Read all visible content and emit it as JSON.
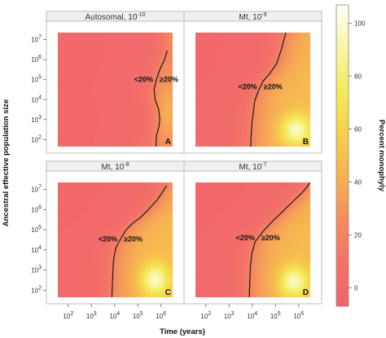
{
  "chart_data": {
    "type": "heatmap",
    "ylabel": "Ancestral effective population size",
    "xlabel": "Time (years)",
    "colorbar": {
      "label": "Percent monophyly",
      "ticks": [
        0,
        20,
        40,
        60,
        80,
        100
      ],
      "range": [
        -7,
        107
      ],
      "colors": [
        "#f1636e",
        "#f37268",
        "#f48c5e",
        "#f6b152",
        "#f7d04c",
        "#f4ea58",
        "#f8f6a6",
        "#fffff8"
      ]
    },
    "x_tick_labels": [
      "10^2",
      "10^3",
      "10^4",
      "10^5",
      "10^6"
    ],
    "y_tick_labels": [
      "10^2",
      "10^3",
      "10^4",
      "10^5",
      "10^6",
      "10^7"
    ],
    "x_range_log10": [
      1.55,
      6.5
    ],
    "y_range_log10": [
      1.65,
      7.35
    ],
    "region_labels": {
      "below": "<20%",
      "above": "≥20%"
    },
    "panels": [
      {
        "title_base": "Autosomal, 10",
        "title_exp": "-10",
        "letter": "A",
        "contour_log10": [
          [
            6.27,
            6.45
          ],
          [
            6.15,
            6.0
          ],
          [
            5.95,
            5.5
          ],
          [
            5.8,
            5.0
          ],
          [
            5.7,
            4.5
          ],
          [
            5.75,
            4.0
          ],
          [
            5.9,
            3.5
          ],
          [
            5.95,
            3.0
          ],
          [
            5.9,
            2.6
          ],
          [
            5.8,
            2.2
          ],
          [
            5.78,
            1.65
          ]
        ],
        "label_y_log10": 5.0,
        "warm": {
          "cx": 6.3,
          "cy": 3.4,
          "sx": 0.45,
          "sy": 1.4,
          "peak": 42,
          "ref_t": 5.8
        }
      },
      {
        "title_base": "Mt, 10",
        "title_exp": "-9",
        "letter": "B",
        "contour_log10": [
          [
            5.45,
            7.35
          ],
          [
            5.25,
            6.5
          ],
          [
            5.05,
            5.8
          ],
          [
            4.75,
            5.3
          ],
          [
            4.45,
            4.9
          ],
          [
            4.25,
            4.4
          ],
          [
            4.1,
            3.9
          ],
          [
            4.05,
            3.4
          ],
          [
            3.98,
            2.8
          ],
          [
            3.95,
            2.2
          ],
          [
            3.93,
            1.65
          ]
        ],
        "label_y_log10": 4.65,
        "warm": {
          "cx": 5.9,
          "cy": 2.5,
          "sx": 0.65,
          "sy": 0.75,
          "peak": 100,
          "ref_t": 4.1
        }
      },
      {
        "title_base": "Mt, 10",
        "title_exp": "-8",
        "letter": "C",
        "contour_log10": [
          [
            6.25,
            7.2
          ],
          [
            5.85,
            6.5
          ],
          [
            5.45,
            6.0
          ],
          [
            5.1,
            5.6
          ],
          [
            4.75,
            5.3
          ],
          [
            4.5,
            5.0
          ],
          [
            4.28,
            4.6
          ],
          [
            4.05,
            4.1
          ],
          [
            3.95,
            3.5
          ],
          [
            3.92,
            2.8
          ],
          [
            3.9,
            2.2
          ],
          [
            3.88,
            1.65
          ]
        ],
        "label_y_log10": 4.55,
        "warm": {
          "cx": 5.75,
          "cy": 2.55,
          "sx": 0.6,
          "sy": 0.8,
          "peak": 100,
          "ref_t": 4.1
        }
      },
      {
        "title_base": "Mt, 10",
        "title_exp": "-7",
        "letter": "D",
        "contour_log10": [
          [
            6.5,
            7.35
          ],
          [
            6.2,
            6.9
          ],
          [
            5.75,
            6.4
          ],
          [
            5.3,
            5.9
          ],
          [
            4.85,
            5.4
          ],
          [
            4.45,
            4.9
          ],
          [
            4.12,
            4.4
          ],
          [
            3.98,
            3.8
          ],
          [
            3.92,
            3.2
          ],
          [
            3.9,
            2.6
          ],
          [
            3.88,
            2.0
          ],
          [
            3.87,
            1.65
          ]
        ],
        "label_y_log10": 4.6,
        "warm": {
          "cx": 5.8,
          "cy": 2.45,
          "sx": 0.6,
          "sy": 0.75,
          "peak": 100,
          "ref_t": 4.05
        }
      }
    ]
  }
}
